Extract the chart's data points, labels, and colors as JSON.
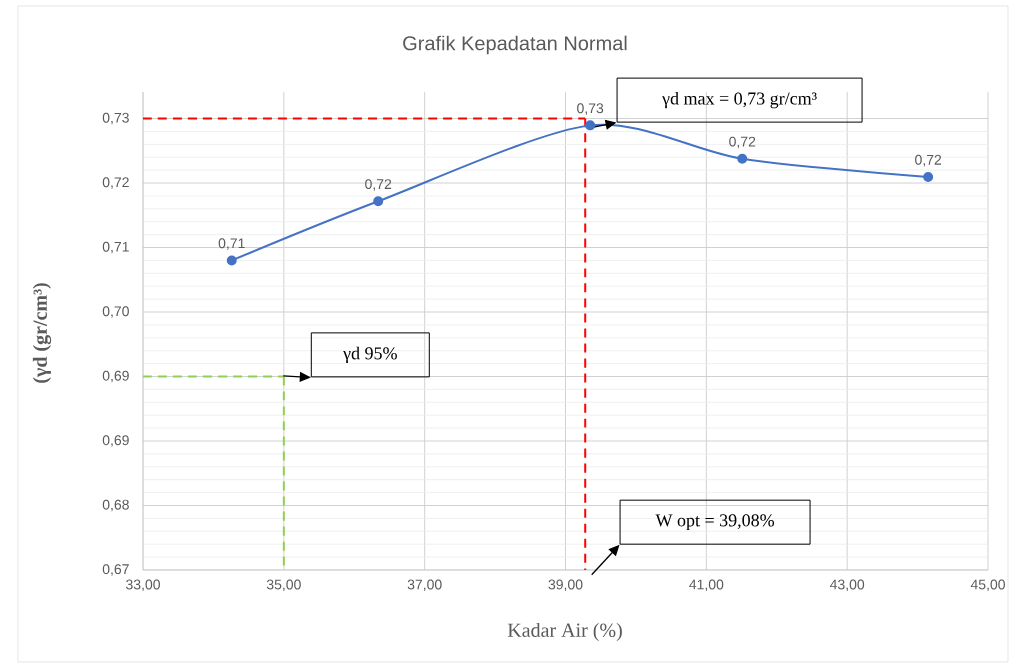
{
  "chart_data": {
    "type": "line",
    "title": "Grafik Kepadatan Normal",
    "xlabel": "Kadar Air (%)",
    "ylabel": "(γd (gr/cm³)",
    "xlim": [
      33,
      45
    ],
    "xticks": [
      {
        "value": 33,
        "label": "33,00"
      },
      {
        "value": 35,
        "label": "35,00"
      },
      {
        "value": 37,
        "label": "37,00"
      },
      {
        "value": 39,
        "label": "39,00"
      },
      {
        "value": 41,
        "label": "41,00"
      },
      {
        "value": 43,
        "label": "43,00"
      },
      {
        "value": 45,
        "label": "45,00"
      }
    ],
    "ylim": [
      0.669,
      0.732
    ],
    "yticks": [
      {
        "value": 0.669,
        "label": "0,67"
      },
      {
        "value": 0.6775,
        "label": "0,68"
      },
      {
        "value": 0.686,
        "label": "0,69"
      },
      {
        "value": 0.6945,
        "label": "0,69"
      },
      {
        "value": 0.703,
        "label": "0,70"
      },
      {
        "value": 0.7115,
        "label": "0,71"
      },
      {
        "value": 0.72,
        "label": "0,72"
      },
      {
        "value": 0.7285,
        "label": "0,73"
      }
    ],
    "grid": true,
    "series": [
      {
        "color": "#4472c4",
        "marker": "circle",
        "line_style": "solid",
        "x": [
          34.26,
          36.34,
          39.35,
          41.51,
          44.15
        ],
        "values": [
          0.7098,
          0.7176,
          0.7276,
          0.7232,
          0.7208
        ],
        "value_labels": [
          "0,71",
          "0,72",
          "0,73",
          "0,72",
          "0,72"
        ]
      },
      {
        "color": "#ff0000",
        "marker": "none",
        "line_style": "dashed",
        "x": [
          33,
          39.28
        ],
        "values": [
          0.7285,
          0.7285
        ]
      },
      {
        "color": "#ff0000",
        "marker": "none",
        "line_style": "dashed",
        "x": [
          39.28,
          39.28
        ],
        "values": [
          0.7285,
          0.669
        ]
      },
      {
        "color": "#92d050",
        "marker": "none",
        "line_style": "dashed",
        "x": [
          33,
          35
        ],
        "values": [
          0.6945,
          0.6945
        ]
      },
      {
        "color": "#92d050",
        "marker": "none",
        "line_style": "dashed",
        "x": [
          35,
          35
        ],
        "values": [
          0.6945,
          0.669
        ]
      }
    ],
    "annotations": [
      "γd max = 0,73 gr/cm³",
      "γd 95%",
      "W opt = 39,08%"
    ]
  }
}
